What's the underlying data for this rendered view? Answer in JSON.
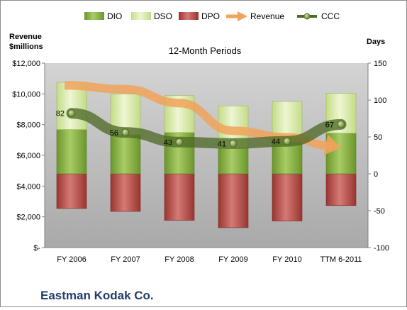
{
  "chart_data": {
    "type": "bar",
    "title": "12-Month Periods",
    "company": "Eastman Kodak Co.",
    "left_axis_title": [
      "Revenue",
      "$millions"
    ],
    "right_axis_title": "Days",
    "categories": [
      "FY 2006",
      "FY 2007",
      "FY 2008",
      "FY 2009",
      "FY 2010",
      "TTM 6-2011"
    ],
    "left_ticks": [
      "$12,000",
      "$10,000",
      "$8,000",
      "$6,000",
      "$4,000",
      "$2,000",
      "$-"
    ],
    "right_ticks": [
      "150",
      "100",
      "50",
      "0",
      "-50",
      "-100"
    ],
    "y_left_range": [
      0,
      12000
    ],
    "y_right_range": [
      -100,
      150
    ],
    "grid": false,
    "legend_position": "top",
    "series": [
      {
        "name": "DIO",
        "kind": "stacked-bar",
        "axis": "right",
        "values": [
          60,
          53,
          56,
          35,
          45,
          55
        ]
      },
      {
        "name": "DSO",
        "kind": "stacked-bar",
        "axis": "right",
        "values": [
          64,
          55,
          50,
          57,
          53,
          54
        ]
      },
      {
        "name": "DPO",
        "kind": "negative-bar",
        "axis": "right",
        "values": [
          -47,
          -51,
          -63,
          -73,
          -64,
          -43
        ]
      },
      {
        "name": "Revenue",
        "kind": "arrow",
        "axis": "left",
        "values": [
          10550,
          10300,
          9400,
          7600,
          7170,
          6500
        ]
      },
      {
        "name": "CCC",
        "kind": "line",
        "axis": "right",
        "values": [
          82,
          56,
          43,
          41,
          44,
          67
        ]
      }
    ],
    "ccc_labels": [
      "82",
      "56",
      "43",
      "41",
      "44",
      "67"
    ],
    "colors": {
      "DIO": "#7fa83a",
      "DSO": "#d6e8a4",
      "DPO": "#b24a45",
      "Revenue": "#f0a35a",
      "CCC": "#4f6a28",
      "plot_bg": "#c0c0c0"
    }
  }
}
